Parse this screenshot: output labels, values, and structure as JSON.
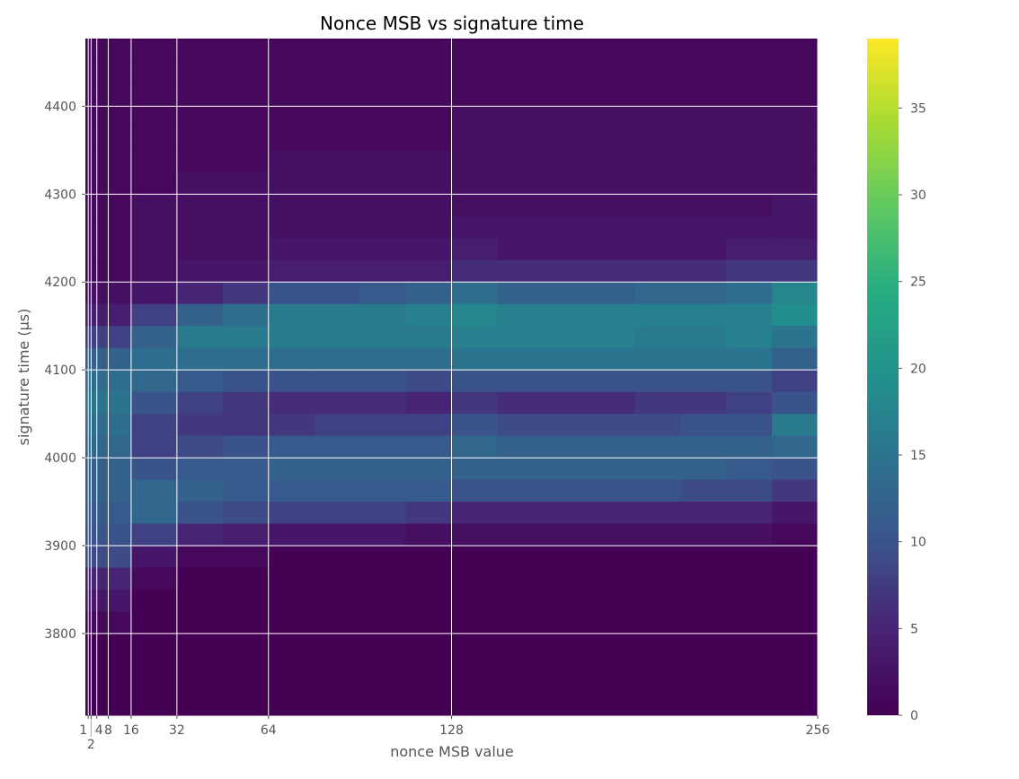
{
  "chart_data": {
    "type": "heatmap",
    "title": "Nonce MSB vs signature time",
    "xlabel": "nonce MSB value",
    "ylabel": "signature time (μs)",
    "xlim": [
      0,
      256
    ],
    "ylim": [
      3707,
      4477
    ],
    "x_ticks": [
      1,
      2,
      4,
      8,
      16,
      32,
      64,
      128,
      256
    ],
    "y_ticks": [
      3800,
      3900,
      4000,
      4100,
      4200,
      4300,
      4400
    ],
    "grid": true,
    "colormap": "viridis",
    "colorbar": {
      "min": 0,
      "max": 39,
      "ticks": [
        0,
        5,
        10,
        15,
        20,
        25,
        30,
        35
      ]
    },
    "x_bin_edges": [
      0,
      16,
      32,
      48,
      64,
      80,
      96,
      112,
      128,
      144,
      160,
      176,
      192,
      208,
      224,
      240,
      256
    ],
    "y_bin_lower_edges_top_to_bottom": [
      4450,
      4425,
      4400,
      4375,
      4350,
      4325,
      4300,
      4275,
      4250,
      4225,
      4200,
      4175,
      4150,
      4125,
      4100,
      4075,
      4050,
      4025,
      4000,
      3975,
      3950,
      3925,
      3900,
      3875,
      3850,
      3825,
      3800,
      3775,
      3750,
      3725,
      3700
    ],
    "y_bin_width": 25,
    "counts": [
      [
        1,
        1,
        1,
        1,
        1,
        1,
        1,
        1,
        1,
        1,
        1,
        1,
        1,
        1,
        1,
        1
      ],
      [
        1,
        1,
        1,
        1,
        1,
        1,
        1,
        1,
        1,
        1,
        1,
        1,
        1,
        1,
        1,
        1
      ],
      [
        1,
        1,
        1,
        1,
        1,
        1,
        1,
        1,
        1,
        1,
        1,
        1,
        1,
        1,
        1,
        1
      ],
      [
        1,
        1,
        1,
        1,
        1,
        1,
        1,
        1,
        2,
        2,
        2,
        2,
        2,
        2,
        2,
        2
      ],
      [
        1,
        1,
        1,
        1,
        1,
        1,
        1,
        1,
        2,
        2,
        2,
        2,
        2,
        2,
        2,
        2
      ],
      [
        1,
        1,
        1,
        1,
        2,
        2,
        2,
        2,
        2,
        2,
        2,
        2,
        2,
        2,
        2,
        2
      ],
      [
        1,
        1,
        2,
        2,
        2,
        2,
        2,
        2,
        2,
        2,
        2,
        2,
        2,
        2,
        2,
        2
      ],
      [
        1,
        2,
        2,
        2,
        2,
        2,
        2,
        2,
        2,
        2,
        2,
        2,
        2,
        2,
        2,
        3
      ],
      [
        1,
        2,
        2,
        2,
        2,
        2,
        2,
        2,
        3,
        3,
        3,
        3,
        3,
        3,
        3,
        3
      ],
      [
        1,
        2,
        2,
        2,
        3,
        3,
        3,
        3,
        4,
        3,
        3,
        3,
        3,
        3,
        4,
        4
      ],
      [
        1,
        2,
        3,
        3,
        4,
        4,
        4,
        4,
        6,
        6,
        6,
        6,
        6,
        6,
        7,
        7
      ],
      [
        2,
        3,
        5,
        7,
        10,
        10,
        11,
        12,
        14,
        12,
        12,
        12,
        13,
        13,
        14,
        18
      ],
      [
        4,
        8,
        12,
        14,
        16,
        16,
        16,
        17,
        18,
        17,
        17,
        17,
        17,
        17,
        17,
        19
      ],
      [
        8,
        12,
        16,
        16,
        16,
        16,
        16,
        16,
        17,
        17,
        17,
        17,
        16,
        16,
        17,
        15
      ],
      [
        12,
        14,
        14,
        14,
        14,
        14,
        14,
        14,
        15,
        15,
        15,
        15,
        15,
        15,
        15,
        12
      ],
      [
        14,
        13,
        11,
        10,
        10,
        10,
        10,
        9,
        10,
        10,
        10,
        10,
        10,
        10,
        10,
        8
      ],
      [
        15,
        10,
        8,
        7,
        6,
        6,
        6,
        5,
        7,
        6,
        6,
        6,
        7,
        7,
        8,
        10
      ],
      [
        14,
        8,
        7,
        7,
        7,
        8,
        8,
        8,
        10,
        9,
        9,
        9,
        9,
        10,
        10,
        16
      ],
      [
        13,
        8,
        9,
        10,
        11,
        11,
        11,
        11,
        13,
        12,
        12,
        12,
        12,
        12,
        12,
        13
      ],
      [
        12,
        10,
        11,
        11,
        12,
        12,
        12,
        12,
        12,
        12,
        12,
        12,
        12,
        12,
        11,
        10
      ],
      [
        12,
        13,
        12,
        11,
        11,
        11,
        11,
        11,
        10,
        10,
        10,
        10,
        10,
        9,
        9,
        7
      ],
      [
        11,
        13,
        10,
        9,
        8,
        8,
        8,
        7,
        5,
        5,
        5,
        5,
        5,
        5,
        5,
        3
      ],
      [
        10,
        8,
        5,
        4,
        3,
        3,
        3,
        2,
        2,
        2,
        2,
        2,
        2,
        2,
        2,
        1
      ],
      [
        9,
        3,
        1,
        1,
        0,
        0,
        0,
        0,
        0,
        0,
        0,
        0,
        0,
        0,
        0,
        0
      ],
      [
        5,
        1,
        0,
        0,
        0,
        0,
        0,
        0,
        0,
        0,
        0,
        0,
        0,
        0,
        0,
        0
      ],
      [
        3,
        0,
        0,
        0,
        0,
        0,
        0,
        0,
        0,
        0,
        0,
        0,
        0,
        0,
        0,
        0
      ],
      [
        1,
        0,
        0,
        0,
        0,
        0,
        0,
        0,
        0,
        0,
        0,
        0,
        0,
        0,
        0,
        0
      ],
      [
        0,
        0,
        0,
        0,
        0,
        0,
        0,
        0,
        0,
        0,
        0,
        0,
        0,
        0,
        0,
        0
      ],
      [
        0,
        0,
        0,
        0,
        0,
        0,
        0,
        0,
        0,
        0,
        0,
        0,
        0,
        0,
        0,
        0
      ],
      [
        0,
        0,
        0,
        0,
        0,
        0,
        0,
        0,
        0,
        0,
        0,
        0,
        0,
        0,
        0,
        0
      ],
      [
        0,
        0,
        0,
        0,
        0,
        0,
        0,
        0,
        0,
        0,
        0,
        0,
        0,
        0,
        0,
        0
      ]
    ]
  }
}
